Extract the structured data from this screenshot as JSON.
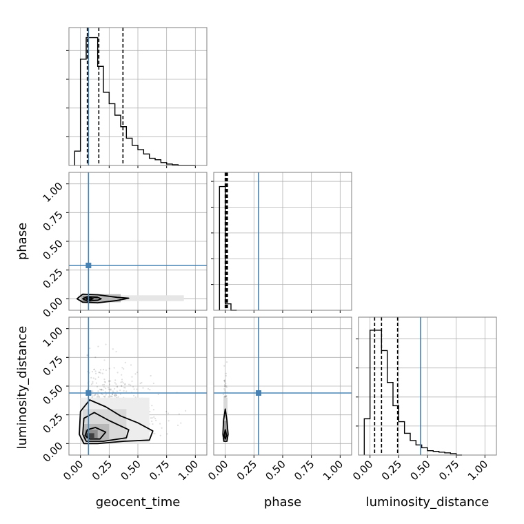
{
  "chart_data": {
    "type": "corner",
    "parameters": [
      "geocent_time",
      "phase",
      "luminosity_distance"
    ],
    "axis_range": [
      -0.1,
      1.1
    ],
    "ticks": [
      0.0,
      0.25,
      0.5,
      0.75,
      1.0
    ],
    "tick_labels": [
      "0.00",
      "0.25",
      "0.50",
      "0.75",
      "1.00"
    ],
    "grid": true,
    "colors": {
      "truth": "#4682b4",
      "hist": "#000000",
      "quantile": "#000000",
      "frame": "#7f7f7f",
      "grid": "#b0b0b0"
    },
    "truths": {
      "geocent_time": 0.07,
      "phase": 0.29,
      "luminosity_distance": 0.44
    },
    "histograms": {
      "geocent_time": {
        "bin_edges": [
          -0.05,
          0.0,
          0.05,
          0.1,
          0.15,
          0.2,
          0.25,
          0.3,
          0.35,
          0.4,
          0.45,
          0.5,
          0.55,
          0.6,
          0.65,
          0.7,
          0.75,
          0.8,
          0.85,
          0.9,
          0.95,
          1.0
        ],
        "counts": [
          0.1,
          0.74,
          0.89,
          0.89,
          0.69,
          0.51,
          0.43,
          0.35,
          0.27,
          0.19,
          0.14,
          0.11,
          0.08,
          0.05,
          0.04,
          0.02,
          0.01,
          0.005,
          0.0,
          0.0,
          0.0
        ],
        "ymax": 0.96,
        "quantiles": [
          0.06,
          0.16,
          0.37
        ]
      },
      "phase": {
        "bin_edges": [
          -0.05,
          0.0,
          0.05,
          0.1
        ],
        "counts": [
          0.96,
          0.05,
          0.0
        ],
        "ymax": 1.07,
        "quantiles": [
          0.0,
          0.01,
          0.02
        ]
      },
      "luminosity_distance": {
        "bin_edges": [
          -0.05,
          0.0,
          0.05,
          0.1,
          0.15,
          0.2,
          0.25,
          0.3,
          0.35,
          0.4,
          0.45,
          0.5,
          0.55,
          0.6,
          0.65,
          0.7,
          0.75,
          0.8
        ],
        "counts": [
          0.25,
          0.86,
          0.86,
          0.72,
          0.5,
          0.34,
          0.23,
          0.15,
          0.1,
          0.07,
          0.05,
          0.03,
          0.025,
          0.02,
          0.015,
          0.01,
          0.0
        ],
        "ymax": 0.95,
        "quantiles": [
          0.04,
          0.1,
          0.24
        ]
      }
    },
    "contours": {
      "phase_vs_geocent_time": {
        "density": [
          {
            "x": [
              -0.02,
              0.9
            ],
            "y": [
              -0.02,
              0.03
            ],
            "shade": 0.9
          },
          {
            "x": [
              0.0,
              0.35
            ],
            "y": [
              -0.03,
              0.04
            ],
            "shade": 0.72
          },
          {
            "x": [
              0.02,
              0.15
            ],
            "y": [
              -0.02,
              0.025
            ],
            "shade": 0.5
          },
          {
            "x": [
              0.05,
              0.1
            ],
            "y": [
              -0.01,
              0.015
            ],
            "shade": 0.2
          }
        ],
        "levels": [
          [
            [
              -0.03,
              0.0
            ],
            [
              0.02,
              0.04
            ],
            [
              0.15,
              0.035
            ],
            [
              0.32,
              0.012
            ],
            [
              0.42,
              0.005
            ],
            [
              0.32,
              -0.015
            ],
            [
              0.15,
              -0.035
            ],
            [
              0.02,
              -0.03
            ],
            [
              -0.03,
              0.0
            ]
          ],
          [
            [
              0.02,
              0.0
            ],
            [
              0.06,
              0.018
            ],
            [
              0.15,
              0.012
            ],
            [
              0.18,
              0.0
            ],
            [
              0.15,
              -0.013
            ],
            [
              0.06,
              -0.02
            ],
            [
              0.02,
              0.0
            ]
          ],
          [
            [
              0.05,
              0.0
            ],
            [
              0.08,
              0.01
            ],
            [
              0.11,
              0.0
            ],
            [
              0.08,
              -0.01
            ],
            [
              0.05,
              0.0
            ]
          ]
        ]
      },
      "luminosity_distance_vs_geocent_time": {
        "density": [
          {
            "x": [
              0.0,
              0.6
            ],
            "y": [
              0.0,
              0.4
            ],
            "shade": 0.93
          },
          {
            "x": [
              0.02,
              0.4
            ],
            "y": [
              0.02,
              0.3
            ],
            "shade": 0.85
          },
          {
            "x": [
              0.03,
              0.25
            ],
            "y": [
              0.03,
              0.17
            ],
            "shade": 0.72
          },
          {
            "x": [
              0.04,
              0.15
            ],
            "y": [
              0.04,
              0.12
            ],
            "shade": 0.55
          },
          {
            "x": [
              0.05,
              0.12
            ],
            "y": [
              0.05,
              0.09
            ],
            "shade": 0.25
          }
        ],
        "levels": [
          [
            [
              -0.01,
              0.08
            ],
            [
              0.0,
              0.28
            ],
            [
              0.08,
              0.38
            ],
            [
              0.22,
              0.32
            ],
            [
              0.35,
              0.24
            ],
            [
              0.5,
              0.18
            ],
            [
              0.63,
              0.11
            ],
            [
              0.6,
              0.03
            ],
            [
              0.38,
              0.02
            ],
            [
              0.15,
              0.0
            ],
            [
              0.03,
              0.0
            ],
            [
              -0.01,
              0.08
            ]
          ],
          [
            [
              0.02,
              0.08
            ],
            [
              0.03,
              0.22
            ],
            [
              0.12,
              0.27
            ],
            [
              0.25,
              0.2
            ],
            [
              0.42,
              0.12
            ],
            [
              0.4,
              0.05
            ],
            [
              0.2,
              0.02
            ],
            [
              0.05,
              0.02
            ],
            [
              0.02,
              0.08
            ]
          ],
          [
            [
              0.04,
              0.07
            ],
            [
              0.06,
              0.12
            ],
            [
              0.13,
              0.14
            ],
            [
              0.22,
              0.1
            ],
            [
              0.17,
              0.04
            ],
            [
              0.08,
              0.04
            ],
            [
              0.04,
              0.07
            ]
          ]
        ],
        "scatter_seed": 7
      },
      "luminosity_distance_vs_phase": {
        "density": [
          {
            "x": [
              -0.015,
              0.02
            ],
            "y": [
              0.02,
              0.4
            ],
            "shade": 0.85
          },
          {
            "x": [
              -0.01,
              0.015
            ],
            "y": [
              0.03,
              0.2
            ],
            "shade": 0.6
          },
          {
            "x": [
              -0.007,
              0.01
            ],
            "y": [
              0.04,
              0.1
            ],
            "shade": 0.25
          }
        ],
        "levels": [
          [
            [
              -0.02,
              0.08
            ],
            [
              -0.015,
              0.2
            ],
            [
              0.0,
              0.3
            ],
            [
              0.015,
              0.2
            ],
            [
              0.025,
              0.08
            ],
            [
              0.015,
              0.02
            ],
            [
              -0.012,
              0.02
            ],
            [
              -0.02,
              0.08
            ]
          ],
          [
            [
              -0.01,
              0.07
            ],
            [
              0.0,
              0.12
            ],
            [
              0.012,
              0.07
            ],
            [
              0.0,
              0.04
            ],
            [
              -0.01,
              0.07
            ]
          ]
        ],
        "scatter_seed": 11
      }
    }
  }
}
